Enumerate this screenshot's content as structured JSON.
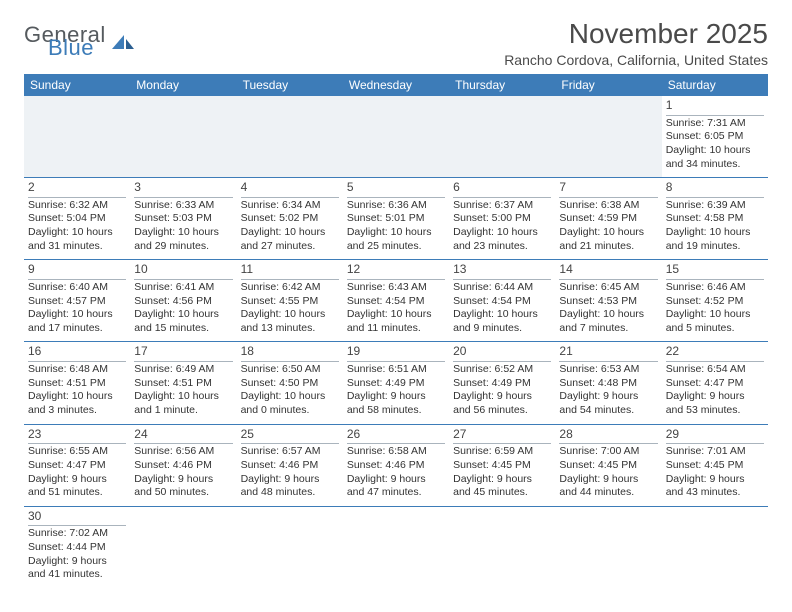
{
  "logo": {
    "part1": "General",
    "part2": "Blue"
  },
  "title": "November 2025",
  "location": "Rancho Cordova, California, United States",
  "colors": {
    "header_bg": "#3d7cb8",
    "header_fg": "#ffffff",
    "border": "#3d7cb8",
    "text": "#333333"
  },
  "day_headers": [
    "Sunday",
    "Monday",
    "Tuesday",
    "Wednesday",
    "Thursday",
    "Friday",
    "Saturday"
  ],
  "weeks": [
    [
      null,
      null,
      null,
      null,
      null,
      null,
      {
        "n": "1",
        "sr": "Sunrise: 7:31 AM",
        "ss": "Sunset: 6:05 PM",
        "dl": "Daylight: 10 hours and 34 minutes."
      }
    ],
    [
      {
        "n": "2",
        "sr": "Sunrise: 6:32 AM",
        "ss": "Sunset: 5:04 PM",
        "dl": "Daylight: 10 hours and 31 minutes."
      },
      {
        "n": "3",
        "sr": "Sunrise: 6:33 AM",
        "ss": "Sunset: 5:03 PM",
        "dl": "Daylight: 10 hours and 29 minutes."
      },
      {
        "n": "4",
        "sr": "Sunrise: 6:34 AM",
        "ss": "Sunset: 5:02 PM",
        "dl": "Daylight: 10 hours and 27 minutes."
      },
      {
        "n": "5",
        "sr": "Sunrise: 6:36 AM",
        "ss": "Sunset: 5:01 PM",
        "dl": "Daylight: 10 hours and 25 minutes."
      },
      {
        "n": "6",
        "sr": "Sunrise: 6:37 AM",
        "ss": "Sunset: 5:00 PM",
        "dl": "Daylight: 10 hours and 23 minutes."
      },
      {
        "n": "7",
        "sr": "Sunrise: 6:38 AM",
        "ss": "Sunset: 4:59 PM",
        "dl": "Daylight: 10 hours and 21 minutes."
      },
      {
        "n": "8",
        "sr": "Sunrise: 6:39 AM",
        "ss": "Sunset: 4:58 PM",
        "dl": "Daylight: 10 hours and 19 minutes."
      }
    ],
    [
      {
        "n": "9",
        "sr": "Sunrise: 6:40 AM",
        "ss": "Sunset: 4:57 PM",
        "dl": "Daylight: 10 hours and 17 minutes."
      },
      {
        "n": "10",
        "sr": "Sunrise: 6:41 AM",
        "ss": "Sunset: 4:56 PM",
        "dl": "Daylight: 10 hours and 15 minutes."
      },
      {
        "n": "11",
        "sr": "Sunrise: 6:42 AM",
        "ss": "Sunset: 4:55 PM",
        "dl": "Daylight: 10 hours and 13 minutes."
      },
      {
        "n": "12",
        "sr": "Sunrise: 6:43 AM",
        "ss": "Sunset: 4:54 PM",
        "dl": "Daylight: 10 hours and 11 minutes."
      },
      {
        "n": "13",
        "sr": "Sunrise: 6:44 AM",
        "ss": "Sunset: 4:54 PM",
        "dl": "Daylight: 10 hours and 9 minutes."
      },
      {
        "n": "14",
        "sr": "Sunrise: 6:45 AM",
        "ss": "Sunset: 4:53 PM",
        "dl": "Daylight: 10 hours and 7 minutes."
      },
      {
        "n": "15",
        "sr": "Sunrise: 6:46 AM",
        "ss": "Sunset: 4:52 PM",
        "dl": "Daylight: 10 hours and 5 minutes."
      }
    ],
    [
      {
        "n": "16",
        "sr": "Sunrise: 6:48 AM",
        "ss": "Sunset: 4:51 PM",
        "dl": "Daylight: 10 hours and 3 minutes."
      },
      {
        "n": "17",
        "sr": "Sunrise: 6:49 AM",
        "ss": "Sunset: 4:51 PM",
        "dl": "Daylight: 10 hours and 1 minute."
      },
      {
        "n": "18",
        "sr": "Sunrise: 6:50 AM",
        "ss": "Sunset: 4:50 PM",
        "dl": "Daylight: 10 hours and 0 minutes."
      },
      {
        "n": "19",
        "sr": "Sunrise: 6:51 AM",
        "ss": "Sunset: 4:49 PM",
        "dl": "Daylight: 9 hours and 58 minutes."
      },
      {
        "n": "20",
        "sr": "Sunrise: 6:52 AM",
        "ss": "Sunset: 4:49 PM",
        "dl": "Daylight: 9 hours and 56 minutes."
      },
      {
        "n": "21",
        "sr": "Sunrise: 6:53 AM",
        "ss": "Sunset: 4:48 PM",
        "dl": "Daylight: 9 hours and 54 minutes."
      },
      {
        "n": "22",
        "sr": "Sunrise: 6:54 AM",
        "ss": "Sunset: 4:47 PM",
        "dl": "Daylight: 9 hours and 53 minutes."
      }
    ],
    [
      {
        "n": "23",
        "sr": "Sunrise: 6:55 AM",
        "ss": "Sunset: 4:47 PM",
        "dl": "Daylight: 9 hours and 51 minutes."
      },
      {
        "n": "24",
        "sr": "Sunrise: 6:56 AM",
        "ss": "Sunset: 4:46 PM",
        "dl": "Daylight: 9 hours and 50 minutes."
      },
      {
        "n": "25",
        "sr": "Sunrise: 6:57 AM",
        "ss": "Sunset: 4:46 PM",
        "dl": "Daylight: 9 hours and 48 minutes."
      },
      {
        "n": "26",
        "sr": "Sunrise: 6:58 AM",
        "ss": "Sunset: 4:46 PM",
        "dl": "Daylight: 9 hours and 47 minutes."
      },
      {
        "n": "27",
        "sr": "Sunrise: 6:59 AM",
        "ss": "Sunset: 4:45 PM",
        "dl": "Daylight: 9 hours and 45 minutes."
      },
      {
        "n": "28",
        "sr": "Sunrise: 7:00 AM",
        "ss": "Sunset: 4:45 PM",
        "dl": "Daylight: 9 hours and 44 minutes."
      },
      {
        "n": "29",
        "sr": "Sunrise: 7:01 AM",
        "ss": "Sunset: 4:45 PM",
        "dl": "Daylight: 9 hours and 43 minutes."
      }
    ],
    [
      {
        "n": "30",
        "sr": "Sunrise: 7:02 AM",
        "ss": "Sunset: 4:44 PM",
        "dl": "Daylight: 9 hours and 41 minutes."
      },
      null,
      null,
      null,
      null,
      null,
      null
    ]
  ]
}
